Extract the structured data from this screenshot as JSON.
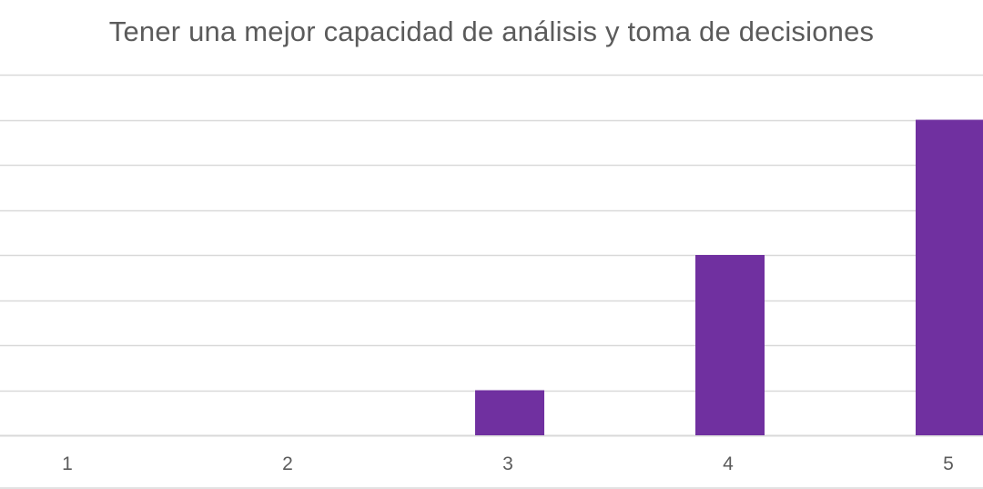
{
  "chart_data": {
    "type": "bar",
    "title": "Tener una mejor capacidad de análisis y toma de decisiones",
    "categories": [
      "1",
      "2",
      "3",
      "4",
      "5"
    ],
    "values": [
      0,
      0,
      1,
      4,
      7
    ],
    "ylim": [
      0,
      8
    ],
    "grid": true,
    "legend": "none",
    "xlabel": "",
    "ylabel": "",
    "bar_color": "#7030a0",
    "grid_color": "#d9d9d9",
    "text_color": "#5b5b5b"
  }
}
